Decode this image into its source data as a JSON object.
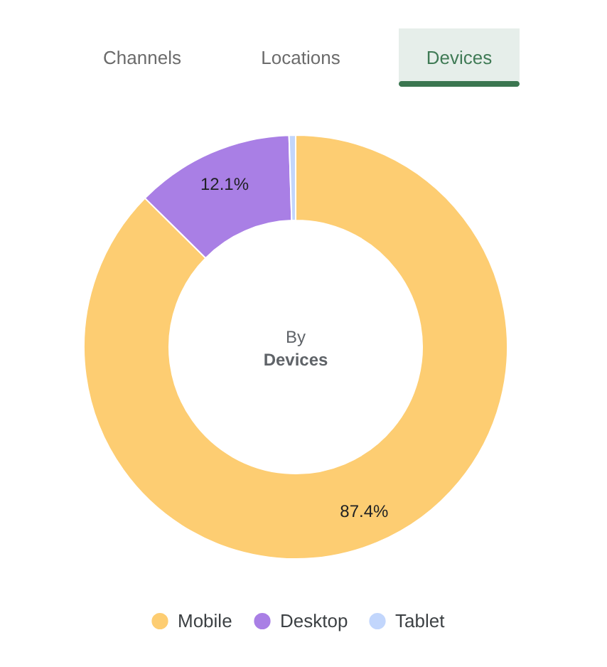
{
  "chart_data": {
    "type": "donut",
    "categories": [
      "Mobile",
      "Desktop",
      "Tablet"
    ],
    "values": [
      87.4,
      12.1,
      0.5
    ],
    "colors": [
      "#fdcd72",
      "#a97fe5",
      "#c2d6fc"
    ],
    "value_labels": [
      "87.4%",
      "12.1%",
      null
    ],
    "legend": "bottom",
    "annotations": [
      "Channels",
      "Locations",
      "Devices",
      "By",
      "Devices"
    ]
  }
}
